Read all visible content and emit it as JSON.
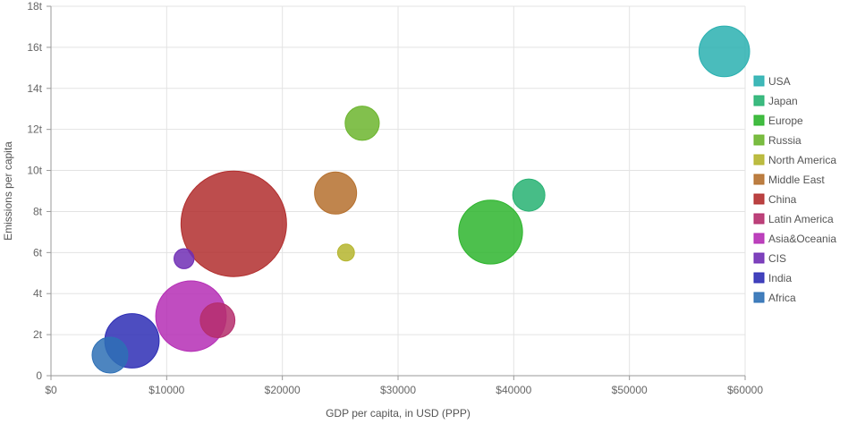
{
  "chart_data": {
    "type": "scatter",
    "subtype": "bubble",
    "title": "",
    "xlabel": "GDP per capita, in USD (PPP)",
    "ylabel": "Emissions per capita",
    "xlim": [
      0,
      60000
    ],
    "ylim": [
      0,
      18
    ],
    "x_ticks": [
      0,
      10000,
      20000,
      30000,
      40000,
      50000,
      60000
    ],
    "x_tick_labels": [
      "$0",
      "$10000",
      "$20000",
      "$30000",
      "$40000",
      "$50000",
      "$60000"
    ],
    "y_ticks": [
      0,
      2,
      4,
      6,
      8,
      10,
      12,
      14,
      16,
      18
    ],
    "y_tick_labels": [
      "0",
      "2t",
      "4t",
      "6t",
      "8t",
      "10t",
      "12t",
      "14t",
      "16t",
      "18t"
    ],
    "grid": true,
    "legend_position": "right",
    "series": [
      {
        "name": "USA",
        "x": 58200,
        "y": 15.8,
        "size": 320,
        "color": "#2ab0b0"
      },
      {
        "name": "Japan",
        "x": 41300,
        "y": 8.8,
        "size": 130,
        "color": "#27b272"
      },
      {
        "name": "Europe",
        "x": 38000,
        "y": 7.0,
        "size": 510,
        "color": "#2eb52e"
      },
      {
        "name": "Russia",
        "x": 26900,
        "y": 12.3,
        "size": 145,
        "color": "#6cb52e"
      },
      {
        "name": "North America",
        "x": 25500,
        "y": 6.0,
        "size": 35,
        "color": "#b5b52e"
      },
      {
        "name": "Middle East",
        "x": 24600,
        "y": 8.9,
        "size": 220,
        "color": "#b5702e"
      },
      {
        "name": "China",
        "x": 15800,
        "y": 7.4,
        "size": 1390,
        "color": "#b22e2e"
      },
      {
        "name": "Latin America",
        "x": 14400,
        "y": 2.7,
        "size": 150,
        "color": "#b52e6c"
      },
      {
        "name": "Asia&Oceania",
        "x": 12100,
        "y": 2.9,
        "size": 620,
        "color": "#b52eb5"
      },
      {
        "name": "CIS",
        "x": 11500,
        "y": 5.7,
        "size": 50,
        "color": "#702eb5"
      },
      {
        "name": "India",
        "x": 7000,
        "y": 1.7,
        "size": 370,
        "color": "#2e2eb5"
      },
      {
        "name": "Africa",
        "x": 5100,
        "y": 1.0,
        "size": 160,
        "color": "#2e70b5"
      }
    ]
  }
}
